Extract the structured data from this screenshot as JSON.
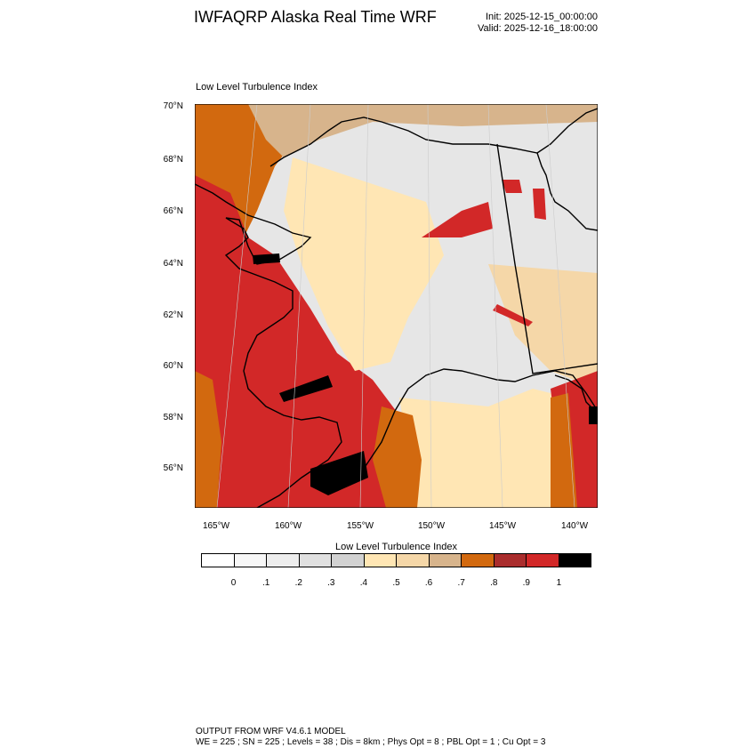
{
  "header": {
    "title": "IWFAQRP Alaska Real Time WRF",
    "init": "Init: 2025-12-15_00:00:00",
    "valid": "Valid: 2025-12-16_18:00:00"
  },
  "plot": {
    "subtitle": "Low Level Turbulence Index",
    "lat_labels": [
      "70°N",
      "68°N",
      "66°N",
      "64°N",
      "62°N",
      "60°N",
      "58°N",
      "56°N"
    ],
    "lon_labels": [
      "165°W",
      "160°W",
      "155°W",
      "150°W",
      "145°W",
      "140°W"
    ]
  },
  "legend": {
    "title": "Low Level Turbulence Index",
    "colors": [
      "#ffffff",
      "#f7f7f7",
      "#ededed",
      "#e0e0e0",
      "#d2d2d2",
      "#ffe6b4",
      "#f5d7a8",
      "#d7b48c",
      "#d2690f",
      "#aa2d2d",
      "#d22828",
      "#000000"
    ],
    "tick_labels": [
      "0",
      ".1",
      ".2",
      ".3",
      ".4",
      ".5",
      ".6",
      ".7",
      ".8",
      ".9",
      "1"
    ]
  },
  "footer": {
    "line1": "OUTPUT FROM WRF V4.6.1 MODEL",
    "line2": "WE = 225 ; SN = 225 ; Levels = 38 ; Dis = 8km ; Phys Opt = 8 ; PBL Opt = 1 ; Cu Opt = 3"
  }
}
